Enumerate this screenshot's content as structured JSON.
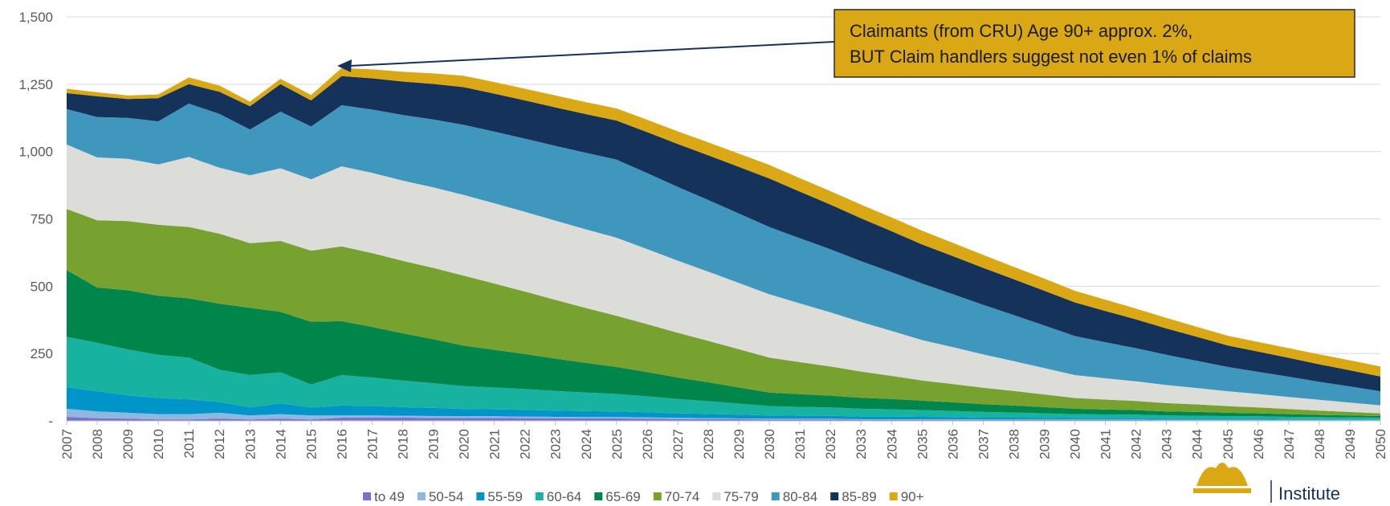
{
  "chart_data": {
    "type": "stacked_area",
    "categories": [
      "2007",
      "2008",
      "2009",
      "2010",
      "2011",
      "2012",
      "2013",
      "2014",
      "2015",
      "2016",
      "2017",
      "2018",
      "2019",
      "2020",
      "2021",
      "2022",
      "2023",
      "2024",
      "2025",
      "2026",
      "2027",
      "2028",
      "2029",
      "2030",
      "2031",
      "2032",
      "2033",
      "2034",
      "2035",
      "2036",
      "2037",
      "2038",
      "2039",
      "2040",
      "2041",
      "2042",
      "2043",
      "2044",
      "2045",
      "2046",
      "2047",
      "2048",
      "2049",
      "2050"
    ],
    "series": [
      {
        "name": "to 49",
        "color": "#7b6fd0",
        "values": [
          15,
          10,
          8,
          5,
          5,
          8,
          5,
          8,
          5,
          12,
          12,
          12,
          11,
          11,
          11,
          10,
          10,
          9,
          9,
          8,
          7,
          6,
          6,
          5,
          5,
          5,
          4,
          4,
          4,
          4,
          3,
          3,
          3,
          3,
          3,
          3,
          2,
          2,
          2,
          2,
          2,
          2,
          2,
          2
        ]
      },
      {
        "name": "50-54",
        "color": "#8fb8e0",
        "values": [
          30,
          25,
          22,
          20,
          20,
          22,
          15,
          17,
          15,
          8,
          8,
          7,
          7,
          6,
          6,
          6,
          5,
          5,
          5,
          5,
          4,
          4,
          3,
          3,
          3,
          3,
          2,
          2,
          2,
          2,
          2,
          2,
          2,
          2,
          2,
          2,
          2,
          2,
          2,
          2,
          2,
          2,
          2,
          2
        ]
      },
      {
        "name": "55-59",
        "color": "#0095c8",
        "values": [
          80,
          75,
          65,
          60,
          55,
          40,
          30,
          40,
          30,
          37,
          35,
          32,
          30,
          27,
          26,
          25,
          23,
          22,
          21,
          19,
          17,
          16,
          14,
          12,
          11,
          11,
          10,
          10,
          9,
          8,
          7,
          7,
          6,
          5,
          5,
          5,
          4,
          4,
          4,
          4,
          3,
          3,
          3,
          3
        ]
      },
      {
        "name": "60-64",
        "color": "#17b3a0",
        "values": [
          187,
          180,
          170,
          160,
          155,
          120,
          120,
          115,
          85,
          113,
          106,
          99,
          92,
          85,
          81,
          77,
          73,
          69,
          65,
          59,
          53,
          47,
          41,
          35,
          33,
          31,
          29,
          27,
          25,
          23,
          21,
          19,
          17,
          15,
          14,
          13,
          12,
          11,
          10,
          9,
          8,
          7,
          6,
          5
        ]
      },
      {
        "name": "65-69",
        "color": "#00854a",
        "values": [
          248,
          205,
          220,
          220,
          220,
          245,
          250,
          225,
          233,
          200,
          188,
          175,
          163,
          150,
          140,
          130,
          120,
          110,
          100,
          90,
          80,
          70,
          60,
          50,
          47,
          44,
          41,
          38,
          35,
          32,
          29,
          26,
          23,
          20,
          18,
          17,
          15,
          14,
          12,
          11,
          10,
          8,
          7,
          6
        ]
      },
      {
        "name": "70-74",
        "color": "#78a22f",
        "values": [
          227,
          250,
          257,
          263,
          265,
          260,
          240,
          263,
          264,
          278,
          274,
          269,
          265,
          260,
          246,
          232,
          218,
          204,
          190,
          178,
          166,
          154,
          142,
          130,
          119,
          108,
          97,
          86,
          75,
          68,
          61,
          54,
          47,
          40,
          37,
          34,
          31,
          28,
          25,
          22,
          19,
          16,
          13,
          10
        ]
      },
      {
        "name": "75-79",
        "color": "#dcdcd8",
        "values": [
          239,
          233,
          231,
          224,
          260,
          245,
          252,
          270,
          265,
          297,
          298,
          298,
          299,
          300,
          298,
          296,
          294,
          292,
          290,
          279,
          268,
          257,
          246,
          235,
          218,
          201,
          184,
          167,
          150,
          137,
          124,
          111,
          98,
          85,
          79,
          73,
          67,
          61,
          55,
          50,
          45,
          40,
          35,
          30
        ]
      },
      {
        "name": "80-84",
        "color": "#4097bd",
        "values": [
          132,
          150,
          152,
          160,
          198,
          200,
          170,
          210,
          196,
          227,
          235,
          244,
          252,
          260,
          266,
          272,
          278,
          284,
          290,
          282,
          274,
          266,
          258,
          250,
          242,
          234,
          226,
          218,
          210,
          197,
          184,
          171,
          158,
          145,
          134,
          123,
          112,
          101,
          90,
          82,
          75,
          67,
          60,
          52
        ]
      },
      {
        "name": "85-89",
        "color": "#15325a",
        "values": [
          59,
          77,
          70,
          86,
          72,
          82,
          86,
          102,
          97,
          108,
          116,
          124,
          132,
          140,
          141,
          142,
          143,
          144,
          145,
          152,
          159,
          166,
          173,
          180,
          173,
          166,
          159,
          152,
          145,
          141,
          137,
          133,
          129,
          125,
          116,
          107,
          98,
          89,
          80,
          75,
          70,
          65,
          60,
          55
        ]
      },
      {
        "name": "90+",
        "color": "#d9a814",
        "values": [
          16,
          15,
          13,
          14,
          25,
          23,
          17,
          20,
          20,
          30,
          33,
          36,
          39,
          42,
          43,
          43,
          44,
          44,
          45,
          46,
          47,
          48,
          49,
          50,
          50,
          50,
          51,
          51,
          51,
          49,
          48,
          46,
          45,
          43,
          42,
          40,
          39,
          37,
          36,
          36,
          36,
          37,
          37,
          37
        ]
      }
    ],
    "ylim": [
      0,
      1500
    ],
    "yticks": [
      {
        "value": 0,
        "label": "-"
      },
      250,
      500,
      750,
      {
        "value": 1000,
        "label": "1,000"
      },
      {
        "value": 1250,
        "label": "1,250"
      },
      {
        "value": 1500,
        "label": "1,500"
      }
    ],
    "grid": true,
    "annotations": [
      {
        "lines": [
          "Claimants (from CRU) Age 90+ approx. 2%,",
          "BUT Claim handlers suggest not even 1% of claims"
        ]
      }
    ],
    "footer_text": "Institute"
  }
}
